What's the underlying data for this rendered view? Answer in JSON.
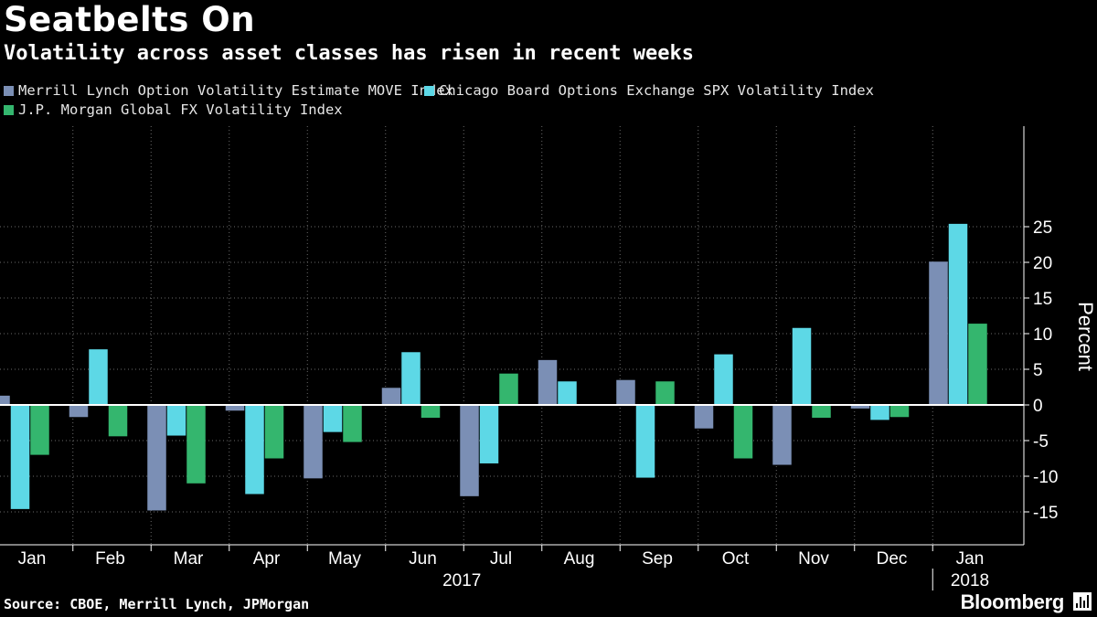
{
  "header": {
    "title": "Seatbelts On",
    "subtitle": "Volatility across asset classes has risen in recent weeks"
  },
  "footer": {
    "source": "Source: CBOE, Merrill Lynch, JPMorgan",
    "brand": "Bloomberg",
    "brand_icon": "bloomberg-terminal-icon"
  },
  "colors": {
    "background": "#000000",
    "move": "#7b8fb5",
    "spx": "#5dd8e6",
    "fx": "#34b66e",
    "grid": "#ffffff",
    "zero_line": "#ffffff"
  },
  "chart_data": {
    "type": "bar",
    "title": "Seatbelts On",
    "subtitle": "Volatility across asset classes has risen in recent weeks",
    "categories": [
      "Jan",
      "Feb",
      "Mar",
      "Apr",
      "May",
      "Jun",
      "Jul",
      "Aug",
      "Sep",
      "Oct",
      "Nov",
      "Dec",
      "Jan"
    ],
    "year_labels": [
      {
        "label": "2017",
        "category_index": 5.5
      },
      {
        "label": "2018",
        "category_index": 12
      }
    ],
    "series": [
      {
        "name": "Merrill Lynch Option Volatility Estimate MOVE Index",
        "color": "#7b8fb5",
        "values": [
          1.3,
          -1.7,
          -14.8,
          -0.8,
          -10.3,
          2.4,
          -12.8,
          6.3,
          3.5,
          -3.3,
          -8.4,
          -0.5,
          20.1
        ]
      },
      {
        "name": "Chicago Board Options Exchange SPX Volatility Index",
        "color": "#5dd8e6",
        "values": [
          -14.6,
          7.8,
          -4.3,
          -12.5,
          -3.8,
          7.4,
          -8.2,
          3.3,
          -10.2,
          7.1,
          10.8,
          -2.1,
          25.4
        ]
      },
      {
        "name": "J.P. Morgan Global FX Volatility Index",
        "color": "#34b66e",
        "values": [
          -7.0,
          -4.4,
          -11.0,
          -7.5,
          -5.2,
          -1.8,
          4.4,
          0,
          3.3,
          -7.5,
          -1.8,
          -1.7,
          11.4
        ]
      }
    ],
    "yticks": [
      25,
      20,
      15,
      10,
      5,
      0,
      -5,
      -10,
      -15
    ],
    "ytick_labels": [
      "25",
      "20",
      "15",
      "10",
      "5",
      "0",
      "-5",
      "-10",
      "-15"
    ],
    "ylim": [
      -18.5,
      29
    ],
    "ylabel": "Percent",
    "xlabel": "",
    "grid": "dotted horizontal and vertical",
    "legend_position": "top-left"
  }
}
